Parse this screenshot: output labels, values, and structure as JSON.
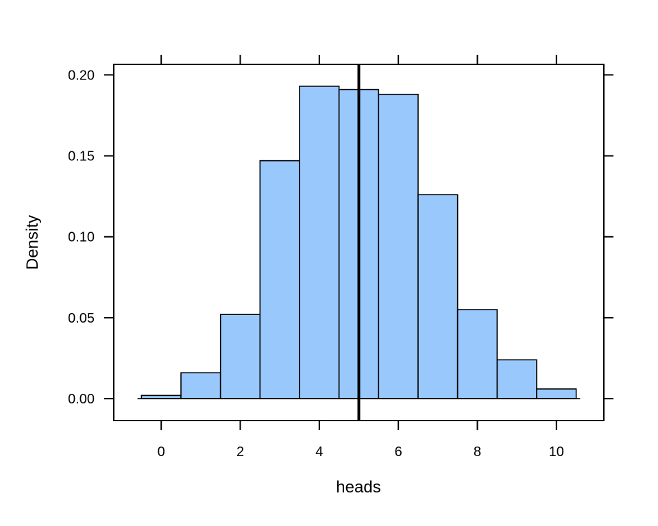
{
  "chart_data": {
    "type": "bar",
    "xlabel": "heads",
    "ylabel": "Density",
    "xlim": [
      -1.2,
      11.2
    ],
    "ylim": [
      -0.0135,
      0.2065
    ],
    "bins": [
      {
        "x0": -0.5,
        "x1": 0.5,
        "density": 0.002
      },
      {
        "x0": 0.5,
        "x1": 1.5,
        "density": 0.016
      },
      {
        "x0": 1.5,
        "x1": 2.5,
        "density": 0.052
      },
      {
        "x0": 2.5,
        "x1": 3.5,
        "density": 0.147
      },
      {
        "x0": 3.5,
        "x1": 4.5,
        "density": 0.193
      },
      {
        "x0": 4.5,
        "x1": 5.5,
        "density": 0.191
      },
      {
        "x0": 5.5,
        "x1": 6.5,
        "density": 0.188
      },
      {
        "x0": 6.5,
        "x1": 7.5,
        "density": 0.126
      },
      {
        "x0": 7.5,
        "x1": 8.5,
        "density": 0.055
      },
      {
        "x0": 8.5,
        "x1": 9.5,
        "density": 0.024
      },
      {
        "x0": 9.5,
        "x1": 10.5,
        "density": 0.006
      }
    ],
    "baseline": {
      "x0": -0.6,
      "x1": 10.6,
      "y": 0
    },
    "reference_line": {
      "x": 5
    },
    "x_ticks": [
      0,
      2,
      4,
      6,
      8,
      10
    ],
    "x_tick_labels": [
      "0",
      "2",
      "4",
      "6",
      "8",
      "10"
    ],
    "y_ticks": [
      0,
      0.05,
      0.1,
      0.15,
      0.2
    ],
    "y_tick_labels": [
      "0.00",
      "0.05",
      "0.10",
      "0.15",
      "0.20"
    ],
    "bar_fill": "#99c8fc",
    "bar_stroke": "#000000",
    "grid": false,
    "legend": "none"
  }
}
